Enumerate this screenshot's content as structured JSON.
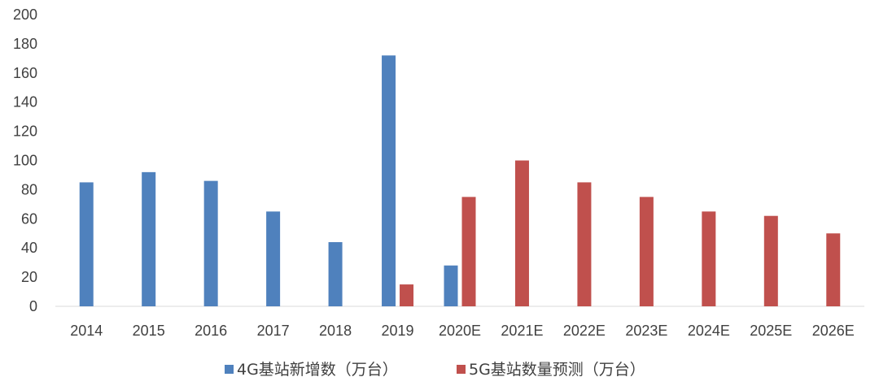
{
  "chart_data": {
    "type": "bar",
    "title": "",
    "xlabel": "",
    "ylabel": "",
    "categories": [
      "2014",
      "2015",
      "2016",
      "2017",
      "2018",
      "2019",
      "2020E",
      "2021E",
      "2022E",
      "2023E",
      "2024E",
      "2025E",
      "2026E"
    ],
    "series": [
      {
        "name": "4G基站新增数（万台）",
        "color": "#4F81BD",
        "values": [
          85,
          92,
          86,
          65,
          44,
          172,
          28,
          null,
          null,
          null,
          null,
          null,
          null
        ]
      },
      {
        "name": "5G基站数量预测（万台）",
        "color": "#C0504D",
        "values": [
          null,
          null,
          null,
          null,
          null,
          15,
          75,
          100,
          85,
          75,
          65,
          62,
          50
        ]
      }
    ],
    "ylim": [
      0,
      200
    ],
    "yticks": [
      0,
      20,
      40,
      60,
      80,
      100,
      120,
      140,
      160,
      180,
      200
    ],
    "grid": false,
    "legend": "bottom"
  }
}
